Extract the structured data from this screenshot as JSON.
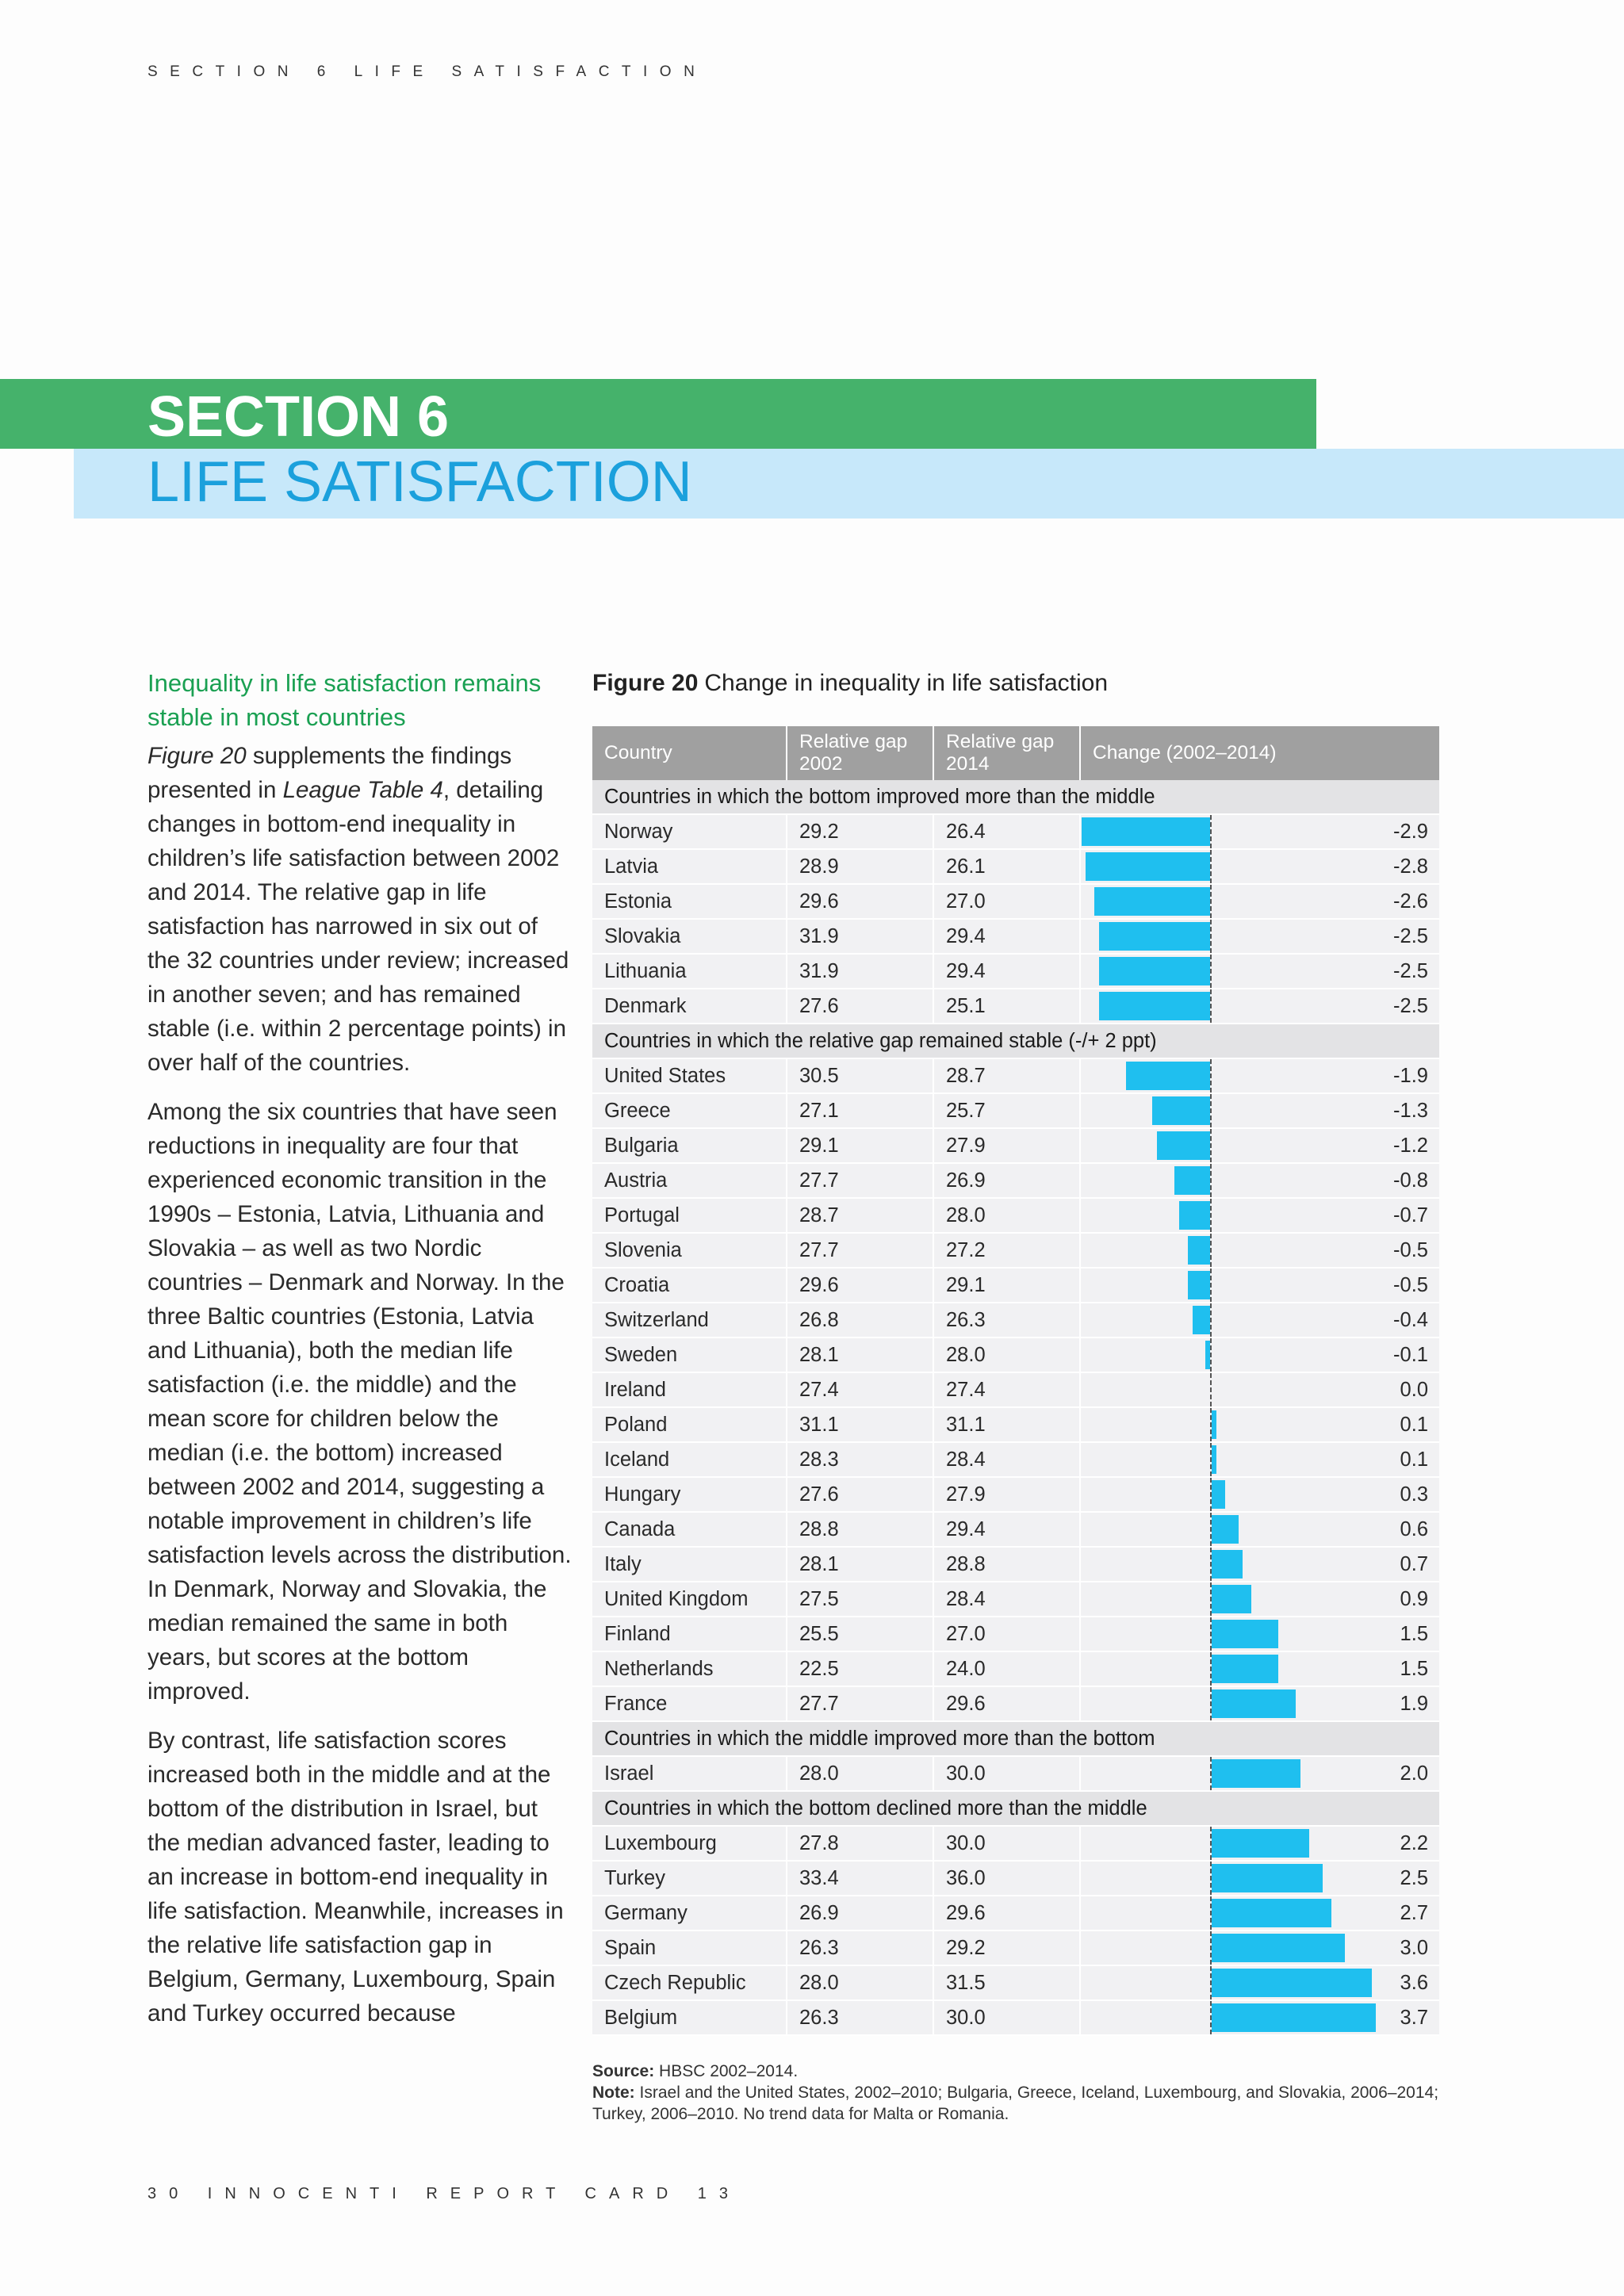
{
  "running_head": "SECTION 6 LIFE SATISFACTION",
  "section": {
    "number_label": "SECTION 6",
    "title": "LIFE SATISFACTION"
  },
  "left_column": {
    "subhead": "Inequality in life satisfaction remains stable in most countries",
    "p1": {
      "fig_ref": "Figure 20",
      "t1": " supplements the findings presented in ",
      "table_ref": "League Table 4",
      "t2": ", detailing changes in bottom-end inequality in children’s life satisfaction between 2002 and 2014. The relative gap in life satisfaction has narrowed in six out of the 32 countries under review; increased in another seven; and has remained stable (i.e. within 2 percentage points) in over half of the countries."
    },
    "p2": "Among the six countries that have seen reductions in inequality are four that experienced economic transition in the 1990s – Estonia, Latvia, Lithuania and Slovakia – as well as two Nordic countries – Denmark and Norway. In the three Baltic countries (Estonia, Latvia and Lithuania), both the median life satisfaction (i.e. the middle) and the mean score for children below the median (i.e. the bottom) increased between 2002 and 2014, suggesting a notable improvement in children’s life satisfaction levels across the distribution. In Denmark, Norway and Slovakia, the median remained the same in both years, but scores at the bottom improved.",
    "p3": "By contrast, life satisfaction scores increased both in the middle and at the bottom of the distribution in Israel, but the median advanced faster, leading to an increase in bottom-end inequality in life satisfaction. Meanwhile, increases in the relative life satisfaction gap in Belgium, Germany, Luxembourg, Spain and Turkey occurred because"
  },
  "figure": {
    "label": "Figure 20",
    "title": "Change in inequality in life satisfaction"
  },
  "table": {
    "headers": [
      "Country",
      "Relative gap 2002",
      "Relative gap 2014",
      "Change (2002–2014)"
    ],
    "bar_color": "#1fbfef",
    "header_color": "#a0a0a0"
  },
  "chart_data": {
    "type": "bar",
    "orientation": "horizontal",
    "x_range": [
      -3.0,
      4.0
    ],
    "groups": [
      {
        "label": "Countries in which the bottom improved more than the middle",
        "rows": [
          {
            "country": "Norway",
            "gap2002": "29.2",
            "gap2014": "26.4",
            "change": "-2.9"
          },
          {
            "country": "Latvia",
            "gap2002": "28.9",
            "gap2014": "26.1",
            "change": "-2.8"
          },
          {
            "country": "Estonia",
            "gap2002": "29.6",
            "gap2014": "27.0",
            "change": "-2.6"
          },
          {
            "country": "Slovakia",
            "gap2002": "31.9",
            "gap2014": "29.4",
            "change": "-2.5"
          },
          {
            "country": "Lithuania",
            "gap2002": "31.9",
            "gap2014": "29.4",
            "change": "-2.5"
          },
          {
            "country": "Denmark",
            "gap2002": "27.6",
            "gap2014": "25.1",
            "change": "-2.5"
          }
        ]
      },
      {
        "label": "Countries in which the relative gap remained stable (-/+ 2 ppt)",
        "rows": [
          {
            "country": "United States",
            "gap2002": "30.5",
            "gap2014": "28.7",
            "change": "-1.9"
          },
          {
            "country": "Greece",
            "gap2002": "27.1",
            "gap2014": "25.7",
            "change": "-1.3"
          },
          {
            "country": "Bulgaria",
            "gap2002": "29.1",
            "gap2014": "27.9",
            "change": "-1.2"
          },
          {
            "country": "Austria",
            "gap2002": "27.7",
            "gap2014": "26.9",
            "change": "-0.8"
          },
          {
            "country": "Portugal",
            "gap2002": "28.7",
            "gap2014": "28.0",
            "change": "-0.7"
          },
          {
            "country": "Slovenia",
            "gap2002": "27.7",
            "gap2014": "27.2",
            "change": "-0.5"
          },
          {
            "country": "Croatia",
            "gap2002": "29.6",
            "gap2014": "29.1",
            "change": "-0.5"
          },
          {
            "country": "Switzerland",
            "gap2002": "26.8",
            "gap2014": "26.3",
            "change": "-0.4"
          },
          {
            "country": "Sweden",
            "gap2002": "28.1",
            "gap2014": "28.0",
            "change": "-0.1"
          },
          {
            "country": "Ireland",
            "gap2002": "27.4",
            "gap2014": "27.4",
            "change": "0.0"
          },
          {
            "country": "Poland",
            "gap2002": "31.1",
            "gap2014": "31.1",
            "change": "0.1"
          },
          {
            "country": "Iceland",
            "gap2002": "28.3",
            "gap2014": "28.4",
            "change": "0.1"
          },
          {
            "country": "Hungary",
            "gap2002": "27.6",
            "gap2014": "27.9",
            "change": "0.3"
          },
          {
            "country": "Canada",
            "gap2002": "28.8",
            "gap2014": "29.4",
            "change": "0.6"
          },
          {
            "country": "Italy",
            "gap2002": "28.1",
            "gap2014": "28.8",
            "change": "0.7"
          },
          {
            "country": "United Kingdom",
            "gap2002": "27.5",
            "gap2014": "28.4",
            "change": "0.9"
          },
          {
            "country": "Finland",
            "gap2002": "25.5",
            "gap2014": "27.0",
            "change": "1.5"
          },
          {
            "country": "Netherlands",
            "gap2002": "22.5",
            "gap2014": "24.0",
            "change": "1.5"
          },
          {
            "country": "France",
            "gap2002": "27.7",
            "gap2014": "29.6",
            "change": "1.9"
          }
        ]
      },
      {
        "label": "Countries in which the middle improved more than the bottom",
        "rows": [
          {
            "country": "Israel",
            "gap2002": "28.0",
            "gap2014": "30.0",
            "change": "2.0"
          }
        ]
      },
      {
        "label": "Countries in which the bottom declined more than the middle",
        "rows": [
          {
            "country": "Luxembourg",
            "gap2002": "27.8",
            "gap2014": "30.0",
            "change": "2.2"
          },
          {
            "country": "Turkey",
            "gap2002": "33.4",
            "gap2014": "36.0",
            "change": "2.5"
          },
          {
            "country": "Germany",
            "gap2002": "26.9",
            "gap2014": "29.6",
            "change": "2.7"
          },
          {
            "country": "Spain",
            "gap2002": "26.3",
            "gap2014": "29.2",
            "change": "3.0"
          },
          {
            "country": "Czech Republic",
            "gap2002": "28.0",
            "gap2014": "31.5",
            "change": "3.6"
          },
          {
            "country": "Belgium",
            "gap2002": "26.3",
            "gap2014": "30.0",
            "change": "3.7"
          }
        ]
      }
    ]
  },
  "notes": {
    "source_label": "Source:",
    "source_text": " HBSC 2002–2014.",
    "note_label": "Note:",
    "note_text": " Israel and the United States, 2002–2010; Bulgaria, Greece, Iceland, Luxembourg, and Slovakia, 2006–2014; Turkey, 2006–2010. No trend data for Malta or Romania."
  },
  "footer": "30 INNOCENTI REPORT CARD 13"
}
